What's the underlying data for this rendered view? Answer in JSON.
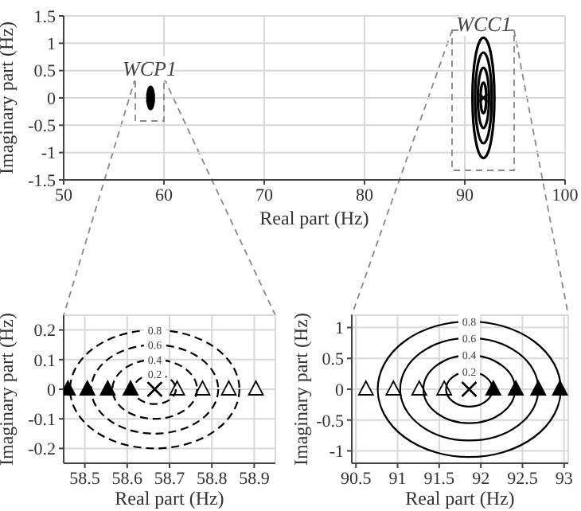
{
  "chart_data": [
    {
      "type": "scatter",
      "xlabel": "Real part (Hz)",
      "ylabel": "Imaginary part (Hz)",
      "xlim": [
        50,
        100
      ],
      "xticks": [
        50,
        60,
        70,
        80,
        90,
        100
      ],
      "ylim": [
        -1.5,
        1.5
      ],
      "yticks": [
        -1.5,
        -1,
        -0.5,
        0,
        0.5,
        1,
        1.5
      ],
      "grid": true,
      "annotations": [
        "WCP1",
        "WCC1"
      ],
      "series": [
        {
          "marker": "cross",
          "color": "#000000",
          "x": [
            58.665,
            91.86
          ],
          "values": [
            0,
            0
          ]
        }
      ]
    },
    {
      "type": "scatter",
      "xlabel": "Real part (Hz)",
      "ylabel": "Imaginary part (Hz)",
      "xlim": [
        58.45,
        58.95
      ],
      "xticks": [
        58.5,
        58.6,
        58.7,
        58.8,
        58.9
      ],
      "ylim": [
        -0.25,
        0.25
      ],
      "yticks": [
        -0.2,
        -0.1,
        0,
        0.1,
        0.2
      ],
      "grid": true,
      "annotations": [
        "0.2",
        "0.4",
        "0.6",
        "0.8"
      ],
      "series": [
        {
          "marker": "triangle",
          "color": "#000000",
          "x": [
            58.46,
            58.506,
            58.554,
            58.608
          ],
          "values": [
            0,
            0,
            0,
            0
          ]
        },
        {
          "marker": "triangle",
          "color": "#ffffff",
          "x": [
            58.718,
            58.778,
            58.84,
            58.904
          ],
          "values": [
            0,
            0,
            0,
            0
          ]
        },
        {
          "marker": "cross",
          "color": "#000000",
          "x": [
            58.665
          ],
          "values": [
            0
          ]
        }
      ]
    },
    {
      "type": "scatter",
      "xlabel": "Real part (Hz)",
      "ylabel": "Imaginary part (Hz)",
      "xlim": [
        90.45,
        93.05
      ],
      "xticks": [
        90.5,
        91,
        91.5,
        92,
        92.5,
        93
      ],
      "ylim": [
        -1.2,
        1.2
      ],
      "yticks": [
        -1,
        -0.5,
        0,
        0.5,
        1
      ],
      "grid": true,
      "annotations": [
        "0.2",
        "0.4",
        "0.6",
        "0.8"
      ],
      "series": [
        {
          "marker": "triangle",
          "color": "#ffffff",
          "x": [
            90.62,
            90.95,
            91.26,
            91.56
          ],
          "values": [
            0,
            0,
            0,
            0
          ]
        },
        {
          "marker": "triangle",
          "color": "#000000",
          "x": [
            92.15,
            92.42,
            92.69,
            92.95
          ],
          "values": [
            0,
            0,
            0,
            0
          ]
        },
        {
          "marker": "cross",
          "color": "#000000",
          "x": [
            91.86
          ],
          "values": [
            0
          ]
        }
      ]
    }
  ]
}
